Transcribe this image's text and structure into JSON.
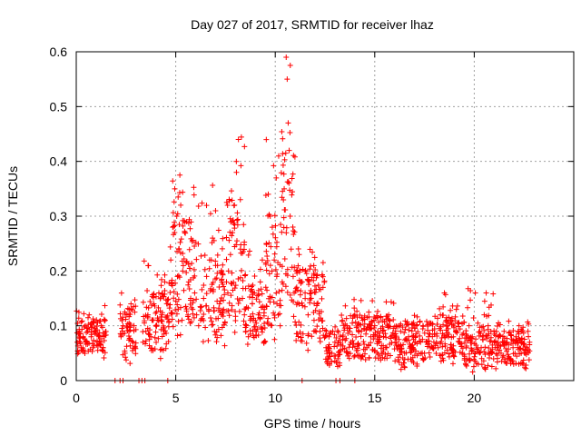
{
  "chart_data": {
    "type": "scatter",
    "title": "Day 027 of 2017, SRMTID for receiver lhaz",
    "xlabel": "GPS time / hours",
    "ylabel": "SRMTID / TECUs",
    "xlim": [
      0,
      25
    ],
    "ylim": [
      0,
      0.6
    ],
    "grid": true,
    "marker": "+",
    "series": [
      {
        "name": "SRMTID",
        "color": "#ff0000",
        "summary": [
          {
            "x_range": [
              0,
              1.5
            ],
            "y_range": [
              0.04,
              0.14
            ],
            "typical": 0.08
          },
          {
            "x_range": [
              2.2,
              3.0
            ],
            "y_range": [
              0.03,
              0.16
            ],
            "typical": 0.09
          },
          {
            "x_range": [
              3.3,
              4.7
            ],
            "y_range": [
              0.04,
              0.22
            ],
            "typical": 0.11
          },
          {
            "x_range": [
              4.7,
              6.2
            ],
            "y_range": [
              0.08,
              0.38
            ],
            "typical": 0.2
          },
          {
            "x_range": [
              6.2,
              7.5
            ],
            "y_range": [
              0.05,
              0.37
            ],
            "typical": 0.15
          },
          {
            "x_range": [
              7.5,
              8.5
            ],
            "y_range": [
              0.08,
              0.45
            ],
            "typical": 0.22
          },
          {
            "x_range": [
              8.5,
              9.5
            ],
            "y_range": [
              0.05,
              0.25
            ],
            "typical": 0.12
          },
          {
            "x_range": [
              9.5,
              10.3
            ],
            "y_range": [
              0.07,
              0.44
            ],
            "typical": 0.2
          },
          {
            "x_range": [
              10.3,
              11.0
            ],
            "y_range": [
              0.1,
              0.6
            ],
            "typical": 0.3
          },
          {
            "x_range": [
              11.0,
              12.5
            ],
            "y_range": [
              0.05,
              0.25
            ],
            "typical": 0.14
          },
          {
            "x_range": [
              12.5,
              13.3
            ],
            "y_range": [
              0.02,
              0.1
            ],
            "typical": 0.06
          },
          {
            "x_range": [
              13.3,
              16.0
            ],
            "y_range": [
              0.03,
              0.15
            ],
            "typical": 0.08
          },
          {
            "x_range": [
              16.0,
              18.0
            ],
            "y_range": [
              0.02,
              0.12
            ],
            "typical": 0.07
          },
          {
            "x_range": [
              18.0,
              19.5
            ],
            "y_range": [
              0.03,
              0.16
            ],
            "typical": 0.08
          },
          {
            "x_range": [
              19.5,
              21.0
            ],
            "y_range": [
              0.01,
              0.17
            ],
            "typical": 0.06
          },
          {
            "x_range": [
              21.0,
              22.8
            ],
            "y_range": [
              0.02,
              0.11
            ],
            "typical": 0.06
          }
        ],
        "points": [
          [
            0.05,
            0.07
          ],
          [
            0.15,
            0.09
          ],
          [
            0.25,
            0.06
          ],
          [
            0.35,
            0.08
          ],
          [
            0.45,
            0.1
          ],
          [
            0.55,
            0.07
          ],
          [
            0.65,
            0.12
          ],
          [
            0.75,
            0.08
          ],
          [
            0.85,
            0.06
          ],
          [
            0.95,
            0.09
          ],
          [
            1.05,
            0.07
          ],
          [
            1.15,
            0.08
          ],
          [
            1.25,
            0.1
          ],
          [
            1.35,
            0.06
          ],
          [
            1.45,
            0.11
          ],
          [
            2.25,
            0.08
          ],
          [
            2.35,
            0.1
          ],
          [
            2.45,
            0.05
          ],
          [
            2.55,
            0.12
          ],
          [
            2.65,
            0.09
          ],
          [
            2.75,
            0.14
          ],
          [
            2.85,
            0.07
          ],
          [
            2.95,
            0.06
          ],
          [
            3.35,
            0.07
          ],
          [
            3.5,
            0.09
          ],
          [
            3.6,
            0.12
          ],
          [
            3.75,
            0.08
          ],
          [
            3.9,
            0.14
          ],
          [
            4.0,
            0.1
          ],
          [
            4.15,
            0.16
          ],
          [
            4.3,
            0.12
          ],
          [
            4.45,
            0.18
          ],
          [
            4.6,
            0.14
          ],
          [
            4.75,
            0.22
          ],
          [
            4.85,
            0.28
          ],
          [
            4.95,
            0.35
          ],
          [
            5.05,
            0.3
          ],
          [
            5.15,
            0.24
          ],
          [
            5.25,
            0.32
          ],
          [
            5.35,
            0.2
          ],
          [
            5.45,
            0.27
          ],
          [
            5.55,
            0.29
          ],
          [
            5.65,
            0.18
          ],
          [
            5.75,
            0.15
          ],
          [
            5.85,
            0.13
          ],
          [
            5.95,
            0.16
          ],
          [
            6.05,
            0.12
          ],
          [
            6.15,
            0.1
          ],
          [
            6.25,
            0.11
          ],
          [
            6.4,
            0.15
          ],
          [
            6.55,
            0.19
          ],
          [
            6.7,
            0.22
          ],
          [
            6.85,
            0.26
          ],
          [
            7.0,
            0.31
          ],
          [
            7.1,
            0.21
          ],
          [
            7.2,
            0.14
          ],
          [
            7.3,
            0.12
          ],
          [
            7.4,
            0.13
          ],
          [
            7.55,
            0.18
          ],
          [
            7.65,
            0.2
          ],
          [
            7.75,
            0.23
          ],
          [
            7.85,
            0.27
          ],
          [
            7.95,
            0.32
          ],
          [
            8.05,
            0.38
          ],
          [
            8.15,
            0.44
          ],
          [
            8.25,
            0.24
          ],
          [
            8.35,
            0.15
          ],
          [
            8.45,
            0.12
          ],
          [
            8.55,
            0.1
          ],
          [
            8.65,
            0.08
          ],
          [
            8.75,
            0.11
          ],
          [
            8.85,
            0.14
          ],
          [
            8.95,
            0.16
          ],
          [
            9.05,
            0.09
          ],
          [
            9.15,
            0.12
          ],
          [
            9.25,
            0.18
          ],
          [
            9.35,
            0.22
          ],
          [
            9.45,
            0.13
          ],
          [
            9.55,
            0.25
          ],
          [
            9.65,
            0.34
          ],
          [
            9.75,
            0.3
          ],
          [
            9.85,
            0.28
          ],
          [
            9.95,
            0.22
          ],
          [
            10.05,
            0.16
          ],
          [
            10.15,
            0.12
          ],
          [
            10.25,
            0.1
          ],
          [
            10.35,
            0.18
          ],
          [
            10.45,
            0.35
          ],
          [
            10.55,
            0.59
          ],
          [
            10.6,
            0.55
          ],
          [
            10.65,
            0.47
          ],
          [
            10.7,
            0.42
          ],
          [
            10.75,
            0.3
          ],
          [
            10.8,
            0.24
          ],
          [
            10.9,
            0.19
          ],
          [
            10.95,
            0.16
          ],
          [
            11.05,
            0.2
          ],
          [
            11.2,
            0.23
          ],
          [
            11.35,
            0.18
          ],
          [
            11.5,
            0.16
          ],
          [
            11.65,
            0.12
          ],
          [
            11.8,
            0.15
          ],
          [
            11.95,
            0.11
          ],
          [
            12.1,
            0.14
          ],
          [
            12.25,
            0.09
          ],
          [
            12.4,
            0.17
          ],
          [
            12.55,
            0.06
          ],
          [
            12.7,
            0.08
          ],
          [
            12.85,
            0.05
          ],
          [
            13.0,
            0.07
          ],
          [
            13.15,
            0.04
          ],
          [
            13.4,
            0.08
          ],
          [
            13.6,
            0.1
          ],
          [
            13.8,
            0.07
          ],
          [
            14.0,
            0.12
          ],
          [
            14.2,
            0.09
          ],
          [
            14.4,
            0.11
          ],
          [
            14.6,
            0.06
          ],
          [
            14.8,
            0.08
          ],
          [
            15.0,
            0.1
          ],
          [
            15.2,
            0.07
          ],
          [
            15.4,
            0.09
          ],
          [
            15.6,
            0.06
          ],
          [
            15.8,
            0.08
          ],
          [
            16.1,
            0.07
          ],
          [
            16.3,
            0.09
          ],
          [
            16.5,
            0.05
          ],
          [
            16.7,
            0.08
          ],
          [
            16.9,
            0.06
          ],
          [
            17.1,
            0.1
          ],
          [
            17.3,
            0.07
          ],
          [
            17.5,
            0.05
          ],
          [
            17.7,
            0.08
          ],
          [
            17.9,
            0.06
          ],
          [
            18.1,
            0.07
          ],
          [
            18.3,
            0.12
          ],
          [
            18.5,
            0.16
          ],
          [
            18.65,
            0.1
          ],
          [
            18.8,
            0.06
          ],
          [
            18.95,
            0.08
          ],
          [
            19.1,
            0.13
          ],
          [
            19.25,
            0.07
          ],
          [
            19.4,
            0.05
          ],
          [
            19.6,
            0.06
          ],
          [
            19.75,
            0.04
          ],
          [
            19.9,
            0.08
          ],
          [
            20.05,
            0.05
          ],
          [
            20.2,
            0.03
          ],
          [
            20.35,
            0.06
          ],
          [
            20.5,
            0.12
          ],
          [
            20.6,
            0.16
          ],
          [
            20.7,
            0.1
          ],
          [
            20.85,
            0.05
          ],
          [
            21.05,
            0.06
          ],
          [
            21.2,
            0.08
          ],
          [
            21.35,
            0.05
          ],
          [
            21.5,
            0.09
          ],
          [
            21.65,
            0.07
          ],
          [
            21.8,
            0.04
          ],
          [
            21.95,
            0.06
          ],
          [
            22.1,
            0.08
          ],
          [
            22.25,
            0.1
          ],
          [
            22.4,
            0.07
          ],
          [
            22.55,
            0.05
          ],
          [
            22.7,
            0.09
          ]
        ]
      }
    ],
    "zero_points_x": [
      1.95,
      2.2,
      2.35,
      3.15,
      3.3,
      3.45,
      4.6,
      11.35,
      13.05,
      13.25,
      14.0
    ],
    "x_ticks": [
      0,
      5,
      10,
      15,
      20
    ],
    "x_tick_labels": [
      "0",
      "5",
      "10",
      "15",
      "20"
    ],
    "y_ticks": [
      0,
      0.1,
      0.2,
      0.3,
      0.4,
      0.5,
      0.6
    ],
    "y_tick_labels": [
      "0",
      "0.1",
      "0.2",
      "0.3",
      "0.4",
      "0.5",
      "0.6"
    ]
  }
}
